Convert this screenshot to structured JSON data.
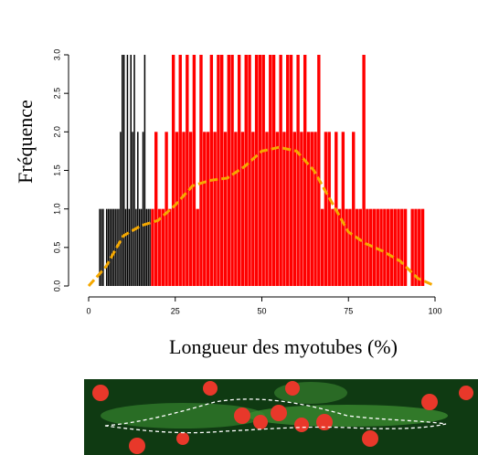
{
  "chart_data": {
    "type": "histogram",
    "ylabel": "Fréquence",
    "xlabel": "Longueur des myotubes (%)",
    "xlim": [
      0,
      100
    ],
    "xticks": [
      0,
      25,
      50,
      75,
      100
    ],
    "ylim": [
      0,
      3
    ],
    "yticks": [
      {
        "value": 0,
        "label": "0.0"
      },
      {
        "value": 0.5,
        "label": "0.5"
      },
      {
        "value": 1,
        "label": "1.0"
      },
      {
        "value": 1.5,
        "label": "1.5"
      },
      {
        "value": 2,
        "label": "2.0"
      },
      {
        "value": 2.5,
        "label": "2.5"
      },
      {
        "value": 3,
        "label": "3.0"
      }
    ],
    "series": [
      {
        "color": "#000000",
        "bins": [
          3,
          3.5,
          4,
          4.5,
          5,
          5.5,
          6,
          6.5,
          7,
          7.5,
          8,
          8.5,
          9,
          9.5,
          10,
          10.5,
          11,
          11.5,
          12,
          12.5,
          13,
          13.5,
          14,
          14.5,
          15,
          15.5,
          16,
          16.5,
          17,
          17.5,
          18
        ],
        "values": [
          1,
          1,
          1,
          0,
          1,
          1,
          1,
          1,
          1,
          1,
          1,
          1,
          2,
          3,
          3,
          1,
          3,
          1,
          3,
          2,
          3,
          1,
          2,
          1,
          1,
          2,
          3,
          1,
          1,
          1
        ]
      },
      {
        "color": "#ff0000",
        "bins": [
          18,
          19,
          20,
          21,
          22,
          23,
          24,
          25,
          26,
          27,
          28,
          29,
          30,
          31,
          32,
          33,
          34,
          35,
          36,
          37,
          38,
          39,
          40,
          41,
          42,
          43,
          44,
          45,
          46,
          47,
          48,
          49,
          50,
          51,
          52,
          53,
          54,
          55,
          56,
          57,
          58,
          59,
          60,
          61,
          62,
          63,
          64,
          65,
          66,
          67,
          68,
          69,
          70,
          71,
          72,
          73,
          74,
          75,
          76,
          77,
          78,
          79,
          80,
          81,
          82,
          83,
          84,
          85,
          86,
          87,
          88,
          89,
          90,
          91,
          92,
          93,
          94,
          95,
          96,
          97
        ],
        "values": [
          1,
          2,
          1,
          1,
          2,
          1,
          3,
          2,
          3,
          2,
          3,
          2,
          3,
          1,
          3,
          2,
          2,
          3,
          2,
          3,
          3,
          2,
          3,
          3,
          2,
          3,
          2,
          3,
          3,
          2,
          3,
          3,
          3,
          2,
          3,
          3,
          2,
          3,
          2,
          3,
          3,
          2,
          3,
          2,
          3,
          2,
          2,
          2,
          3,
          1,
          2,
          2,
          1,
          2,
          1,
          2,
          1,
          1,
          2,
          1,
          1,
          3,
          1,
          1,
          1,
          1,
          1,
          1,
          1,
          1,
          1,
          1,
          1,
          1,
          0,
          1,
          1,
          1,
          1
        ]
      }
    ],
    "density": {
      "color": "#f5a800",
      "x": [
        0,
        5,
        10,
        15,
        20,
        25,
        30,
        35,
        40,
        45,
        50,
        55,
        60,
        65,
        70,
        75,
        80,
        85,
        90,
        95,
        100
      ],
      "values": [
        0,
        0.25,
        0.65,
        0.78,
        0.85,
        1.05,
        1.3,
        1.37,
        1.4,
        1.55,
        1.75,
        1.8,
        1.75,
        1.5,
        1.1,
        0.7,
        0.55,
        0.45,
        0.32,
        0.1,
        0
      ]
    }
  }
}
